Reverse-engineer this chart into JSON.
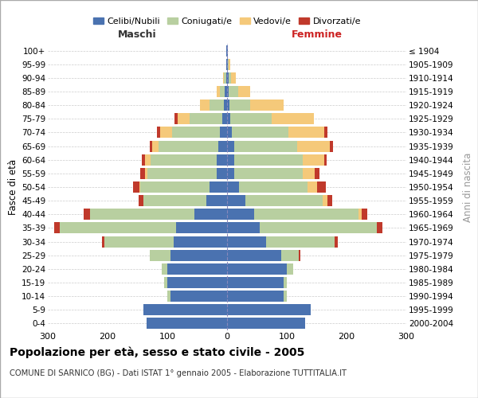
{
  "age_groups": [
    "0-4",
    "5-9",
    "10-14",
    "15-19",
    "20-24",
    "25-29",
    "30-34",
    "35-39",
    "40-44",
    "45-49",
    "50-54",
    "55-59",
    "60-64",
    "65-69",
    "70-74",
    "75-79",
    "80-84",
    "85-89",
    "90-94",
    "95-99",
    "100+"
  ],
  "birth_years": [
    "2000-2004",
    "1995-1999",
    "1990-1994",
    "1985-1989",
    "1980-1984",
    "1975-1979",
    "1970-1974",
    "1965-1969",
    "1960-1964",
    "1955-1959",
    "1950-1954",
    "1945-1949",
    "1940-1944",
    "1935-1939",
    "1930-1934",
    "1925-1929",
    "1920-1924",
    "1915-1919",
    "1910-1914",
    "1905-1909",
    "≤ 1904"
  ],
  "colors": {
    "celibi": "#4a72b0",
    "coniugati": "#b8cfa0",
    "vedovi": "#f5c97a",
    "divorziati": "#c0392b"
  },
  "males": {
    "celibi": [
      135,
      140,
      95,
      100,
      100,
      95,
      90,
      85,
      55,
      35,
      30,
      18,
      18,
      15,
      12,
      8,
      5,
      4,
      2,
      1,
      1
    ],
    "coniugati": [
      0,
      0,
      5,
      5,
      10,
      35,
      115,
      195,
      175,
      105,
      115,
      115,
      110,
      100,
      80,
      55,
      25,
      8,
      3,
      1,
      0
    ],
    "vedovi": [
      0,
      0,
      0,
      0,
      0,
      0,
      0,
      0,
      0,
      0,
      2,
      5,
      10,
      10,
      20,
      20,
      15,
      5,
      2,
      0,
      0
    ],
    "divorziati": [
      0,
      0,
      0,
      0,
      0,
      0,
      5,
      10,
      10,
      8,
      10,
      8,
      5,
      5,
      5,
      5,
      0,
      0,
      0,
      0,
      0
    ]
  },
  "females": {
    "nubili": [
      130,
      140,
      95,
      95,
      100,
      90,
      65,
      55,
      45,
      30,
      20,
      12,
      12,
      12,
      8,
      5,
      4,
      3,
      2,
      1,
      1
    ],
    "coniugate": [
      0,
      0,
      5,
      5,
      10,
      30,
      115,
      195,
      175,
      130,
      115,
      115,
      115,
      105,
      95,
      70,
      35,
      15,
      5,
      2,
      0
    ],
    "vedove": [
      0,
      0,
      0,
      0,
      0,
      0,
      0,
      0,
      5,
      8,
      15,
      20,
      35,
      55,
      60,
      70,
      55,
      20,
      8,
      2,
      0
    ],
    "divorziate": [
      0,
      0,
      0,
      0,
      0,
      2,
      5,
      10,
      10,
      8,
      15,
      8,
      5,
      5,
      5,
      0,
      0,
      0,
      0,
      0,
      0
    ]
  },
  "title": "Popolazione per età, sesso e stato civile - 2005",
  "subtitle": "COMUNE DI SARNICO (BG) - Dati ISTAT 1° gennaio 2005 - Elaborazione TUTTITALIA.IT",
  "xlabel_left": "Maschi",
  "xlabel_right": "Femmine",
  "ylabel_left": "Fasce di età",
  "ylabel_right": "Anni di nascita",
  "xlim": 300,
  "legend_labels": [
    "Celibi/Nubili",
    "Coniugati/e",
    "Vedovi/e",
    "Divorzati/e"
  ],
  "background_color": "#ffffff",
  "grid_color": "#cccccc"
}
